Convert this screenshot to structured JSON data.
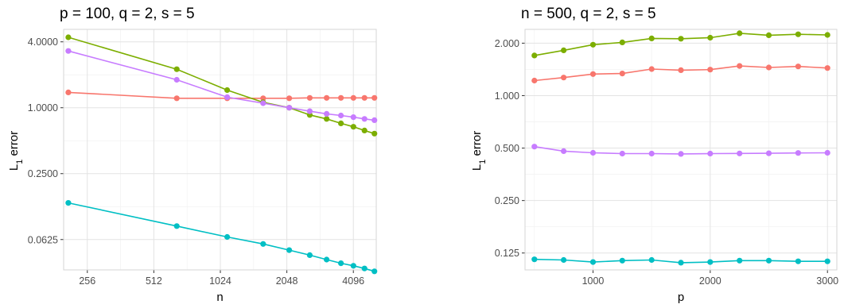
{
  "chart_data": [
    {
      "type": "line",
      "title": "p = 100, q = 2, s = 5",
      "xlabel": "n",
      "ylabel_main": "L",
      "ylabel_sub": "1",
      "ylabel_rest": " error",
      "x_scale": "log2",
      "y_scale": "log",
      "xlim": [
        200,
        5200
      ],
      "ylim": [
        0.033,
        5.2
      ],
      "x_ticks": [
        256,
        512,
        1024,
        2048,
        4096
      ],
      "x_tick_labels": [
        "256",
        "512",
        "1024",
        "2048",
        "4096"
      ],
      "y_ticks": [
        0.0625,
        0.25,
        1.0,
        4.0
      ],
      "y_tick_labels": [
        "0.0625",
        "0.2500",
        "1.0000",
        "4.0000"
      ],
      "grid": true,
      "legend": "none",
      "x": [
        210,
        650,
        1100,
        1600,
        2100,
        2600,
        3100,
        3600,
        4100,
        4600,
        5100
      ],
      "series": [
        {
          "color": "#F8766D",
          "x": [
            210,
            650,
            1100,
            1600,
            2100,
            2600,
            3100,
            3600,
            4100,
            4600,
            5100
          ],
          "values": [
            1.38,
            1.22,
            1.22,
            1.22,
            1.22,
            1.23,
            1.23,
            1.23,
            1.23,
            1.23,
            1.23
          ]
        },
        {
          "color": "#7CAE00",
          "x": [
            210,
            650,
            1100,
            1600,
            2100,
            2600,
            3100,
            3600,
            4100,
            4600,
            5100
          ],
          "values": [
            4.4,
            2.25,
            1.45,
            1.12,
            1.0,
            0.86,
            0.79,
            0.72,
            0.67,
            0.62,
            0.58
          ]
        },
        {
          "color": "#00BFC4",
          "x": [
            210,
            650,
            1100,
            1600,
            2100,
            2600,
            3100,
            3600,
            4100,
            4600,
            5100
          ],
          "values": [
            0.135,
            0.083,
            0.066,
            0.057,
            0.05,
            0.045,
            0.041,
            0.038,
            0.036,
            0.034,
            0.032
          ]
        },
        {
          "color": "#C77CFF",
          "x": [
            210,
            650,
            1100,
            1600,
            2100,
            2600,
            3100,
            3600,
            4100,
            4600,
            5100
          ],
          "values": [
            3.3,
            1.8,
            1.25,
            1.1,
            1.0,
            0.93,
            0.88,
            0.85,
            0.82,
            0.79,
            0.77
          ]
        }
      ]
    },
    {
      "type": "line",
      "title": "n = 500, q = 2, s = 5",
      "xlabel": "p",
      "ylabel_main": "L",
      "ylabel_sub": "1",
      "ylabel_rest": " error",
      "x_scale": "linear",
      "y_scale": "log",
      "xlim": [
        420,
        3080
      ],
      "ylim": [
        0.1,
        2.4
      ],
      "x_ticks": [
        1000,
        2000,
        3000
      ],
      "x_tick_labels": [
        "1000",
        "2000",
        "3000"
      ],
      "y_ticks": [
        0.125,
        0.25,
        0.5,
        1.0,
        2.0
      ],
      "y_tick_labels": [
        "0.125",
        "0.250",
        "0.500",
        "1.000",
        "2.000"
      ],
      "grid": true,
      "legend": "none",
      "series": [
        {
          "color": "#F8766D",
          "x": [
            500,
            750,
            1000,
            1250,
            1500,
            1750,
            2000,
            2250,
            2500,
            2750,
            3000
          ],
          "values": [
            1.22,
            1.27,
            1.33,
            1.34,
            1.42,
            1.4,
            1.41,
            1.48,
            1.45,
            1.47,
            1.44
          ]
        },
        {
          "color": "#7CAE00",
          "x": [
            500,
            750,
            1000,
            1250,
            1500,
            1750,
            2000,
            2250,
            2500,
            2750,
            3000
          ],
          "values": [
            1.7,
            1.82,
            1.96,
            2.02,
            2.13,
            2.12,
            2.15,
            2.28,
            2.22,
            2.25,
            2.23
          ]
        },
        {
          "color": "#00BFC4",
          "x": [
            500,
            750,
            1000,
            1250,
            1500,
            1750,
            2000,
            2250,
            2500,
            2750,
            3000
          ],
          "values": [
            0.115,
            0.114,
            0.111,
            0.113,
            0.114,
            0.11,
            0.111,
            0.113,
            0.113,
            0.112,
            0.112
          ]
        },
        {
          "color": "#C77CFF",
          "x": [
            500,
            750,
            1000,
            1250,
            1500,
            1750,
            2000,
            2250,
            2500,
            2750,
            3000
          ],
          "values": [
            0.51,
            0.48,
            0.47,
            0.465,
            0.465,
            0.463,
            0.465,
            0.466,
            0.467,
            0.469,
            0.47
          ]
        }
      ]
    }
  ]
}
